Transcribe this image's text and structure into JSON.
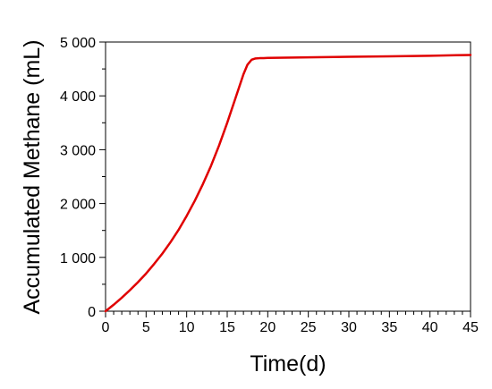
{
  "chart_data": {
    "type": "line",
    "xlabel": "Time(d)",
    "ylabel": "Accumulated Methane (mL)",
    "xlim": [
      0,
      45
    ],
    "ylim": [
      0,
      5000
    ],
    "x_ticks": [
      0,
      5,
      10,
      15,
      20,
      25,
      30,
      35,
      40,
      45
    ],
    "y_ticks": [
      0,
      1000,
      2000,
      3000,
      4000,
      5000
    ],
    "x_tick_labels": [
      "0",
      "5",
      "10",
      "15",
      "20",
      "25",
      "30",
      "35",
      "40",
      "45"
    ],
    "y_tick_labels": [
      "0",
      "1 000",
      "2 000",
      "3 000",
      "4 000",
      "5 000"
    ],
    "grid": false,
    "legend": "none",
    "series": [
      {
        "color": "#e00000",
        "x": [
          0,
          1,
          2,
          3,
          4,
          5,
          6,
          7,
          8,
          9,
          10,
          11,
          12,
          13,
          14,
          15,
          16,
          17,
          17.5,
          18,
          18.5,
          19,
          19.5,
          20,
          25,
          30,
          35,
          40,
          45
        ],
        "y": [
          0,
          120,
          250,
          390,
          540,
          700,
          880,
          1070,
          1280,
          1510,
          1770,
          2050,
          2360,
          2700,
          3080,
          3500,
          3950,
          4400,
          4580,
          4670,
          4695,
          4700,
          4702,
          4705,
          4715,
          4725,
          4735,
          4745,
          4760
        ]
      }
    ]
  }
}
